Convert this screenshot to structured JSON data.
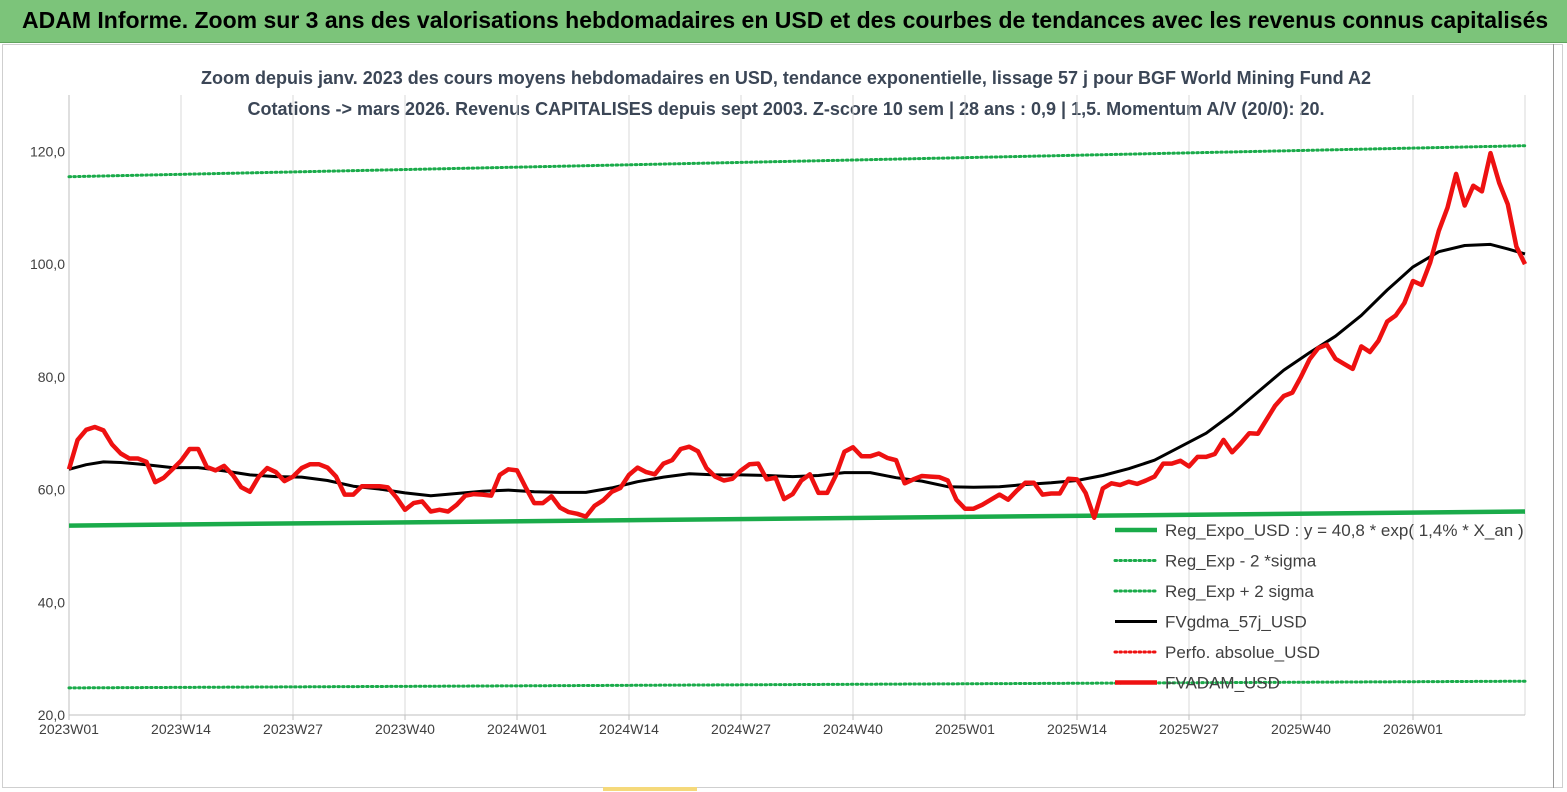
{
  "banner": {
    "title": "ADAM Informe. Zoom sur 3 ans des valorisations hebdomadaires en USD et des courbes de tendances avec les revenus connus capitalisés"
  },
  "colors": {
    "banner_bg": "#7cc47a",
    "green": "#1aab4a",
    "black": "#000000",
    "red": "#ee1111",
    "title_text": "#3b4656"
  },
  "chart_data": {
    "type": "line",
    "title": "Zoom depuis janv. 2023 des cours moyens hebdomadaires en USD, tendance exponentielle, lissage 57 j pour BGF World Mining Fund A2",
    "subtitle": "Cotations -> mars 2026. Revenus CAPITALISES depuis sept 2003. Z-score 10 sem | 28 ans : 0,9 | 1,5. Momentum A/V (20/0): 20.",
    "xlabel": "",
    "ylabel": "",
    "ylim": [
      20,
      130
    ],
    "y_ticks": [
      "20,0",
      "40,0",
      "60,0",
      "80,0",
      "100,0",
      "120,0"
    ],
    "y_tick_values": [
      20,
      40,
      60,
      80,
      100,
      120
    ],
    "x_ticks": [
      "2023W01",
      "2023W14",
      "2023W27",
      "2023W40",
      "2024W01",
      "2024W14",
      "2024W27",
      "2024W40",
      "2025W01",
      "2025W14",
      "2025W27",
      "2025W40",
      "2026W01"
    ],
    "x_tick_index": [
      0,
      13,
      26,
      39,
      52,
      65,
      78,
      91,
      104,
      117,
      130,
      143,
      156
    ],
    "x_max_index": 169,
    "grid": "vertical",
    "legend_placement": "bottom-right",
    "series": [
      {
        "name": "Reg_Expo_USD : y = 40,8 * exp( 1,4% *  X_an )",
        "style": "solid-thick",
        "color": "#1aab4a",
        "x": [
          0,
          169
        ],
        "values": [
          53.6,
          56.1
        ]
      },
      {
        "name": "Reg_Exp - 2 *sigma",
        "style": "dotted",
        "color": "#1aab4a",
        "x": [
          0,
          169
        ],
        "values": [
          24.8,
          26.0
        ]
      },
      {
        "name": "Reg_Exp + 2 sigma",
        "style": "dotted",
        "color": "#1aab4a",
        "x": [
          0,
          169
        ],
        "values": [
          115.5,
          121.0
        ]
      },
      {
        "name": "FVgdma_57j_USD",
        "style": "solid",
        "color": "#000000",
        "x": [
          0,
          2,
          4,
          6,
          9,
          12,
          15,
          18,
          21,
          24,
          27,
          30,
          33,
          36,
          39,
          42,
          45,
          48,
          51,
          54,
          57,
          60,
          63,
          66,
          69,
          72,
          75,
          78,
          81,
          84,
          87,
          90,
          93,
          96,
          99,
          102,
          105,
          108,
          111,
          114,
          117,
          120,
          123,
          126,
          129,
          132,
          135,
          138,
          141,
          144,
          147,
          150,
          153,
          156,
          159,
          162,
          165,
          167,
          169
        ],
        "values": [
          63.6,
          64.4,
          64.9,
          64.8,
          64.4,
          63.9,
          63.9,
          63.3,
          62.6,
          62.3,
          62.2,
          61.6,
          60.6,
          60.1,
          59.4,
          58.9,
          59.3,
          59.7,
          59.9,
          59.6,
          59.5,
          59.5,
          60.3,
          61.4,
          62.2,
          62.8,
          62.6,
          62.6,
          62.5,
          62.3,
          62.5,
          63.0,
          63.0,
          62.1,
          61.5,
          60.5,
          60.4,
          60.5,
          60.9,
          61.2,
          61.6,
          62.5,
          63.7,
          65.2,
          67.6,
          70.0,
          73.4,
          77.3,
          81.2,
          84.3,
          87.2,
          90.9,
          95.4,
          99.5,
          102.2,
          103.3,
          103.5,
          102.7,
          101.8
        ]
      },
      {
        "name": "Perfo. absolue_USD",
        "style": "dotted",
        "color": "#ee1111",
        "x": [],
        "values": []
      },
      {
        "name": "FVADAM_USD",
        "style": "solid-thick",
        "color": "#ee1111",
        "x": [
          0,
          1,
          2,
          3,
          4,
          5,
          6,
          7,
          8,
          9,
          10,
          11,
          12,
          13,
          14,
          15,
          16,
          17,
          18,
          19,
          20,
          21,
          22,
          23,
          24,
          25,
          26,
          27,
          28,
          29,
          30,
          31,
          32,
          33,
          34,
          35,
          36,
          37,
          38,
          39,
          40,
          41,
          42,
          43,
          44,
          45,
          46,
          47,
          48,
          49,
          50,
          51,
          52,
          53,
          54,
          55,
          56,
          57,
          58,
          59,
          60,
          61,
          62,
          63,
          64,
          65,
          66,
          67,
          68,
          69,
          70,
          71,
          72,
          73,
          74,
          75,
          76,
          77,
          78,
          79,
          80,
          81,
          82,
          83,
          84,
          85,
          86,
          87,
          88,
          89,
          90,
          91,
          92,
          93,
          94,
          95,
          96,
          97,
          98,
          99,
          100,
          101,
          102,
          103,
          104,
          105,
          106,
          107,
          108,
          109,
          110,
          111,
          112,
          113,
          114,
          115,
          116,
          117,
          118,
          119,
          120,
          121,
          122,
          123,
          124,
          125,
          126,
          127,
          128,
          129,
          130,
          131,
          132,
          133,
          134,
          135,
          136,
          137,
          138,
          139,
          140,
          141,
          142,
          143,
          144,
          145,
          146,
          147,
          148,
          149,
          150,
          151,
          152,
          153,
          154,
          155,
          156,
          157,
          158,
          159,
          160,
          161,
          162,
          163,
          164,
          165,
          166,
          167,
          168,
          169
        ],
        "values": [
          63.6,
          68.8,
          70.6,
          71.1,
          70.5,
          68.0,
          66.4,
          65.5,
          65.5,
          64.9,
          61.3,
          62.1,
          63.6,
          65.1,
          67.2,
          67.2,
          64.0,
          63.4,
          64.2,
          62.6,
          60.4,
          59.6,
          62.2,
          63.8,
          63.1,
          61.5,
          62.3,
          63.8,
          64.5,
          64.5,
          63.9,
          62.3,
          59.1,
          59.1,
          60.6,
          60.6,
          60.6,
          60.4,
          58.6,
          56.4,
          57.6,
          57.9,
          56.1,
          56.4,
          56.1,
          57.3,
          58.9,
          59.2,
          59.1,
          58.9,
          62.6,
          63.6,
          63.4,
          60.4,
          57.6,
          57.6,
          58.8,
          56.8,
          56.0,
          55.7,
          55.2,
          57.1,
          58.1,
          59.6,
          60.3,
          62.6,
          63.9,
          63.1,
          62.7,
          64.6,
          65.2,
          67.2,
          67.6,
          66.8,
          63.8,
          62.3,
          61.6,
          61.9,
          63.4,
          64.5,
          64.6,
          61.8,
          62.1,
          58.3,
          59.2,
          61.6,
          62.7,
          59.4,
          59.4,
          62.5,
          66.7,
          67.5,
          65.9,
          65.9,
          66.4,
          65.6,
          65.2,
          61.1,
          61.8,
          62.4,
          62.3,
          62.2,
          61.6,
          58.2,
          56.6,
          56.6,
          57.3,
          58.2,
          59.1,
          58.2,
          59.8,
          61.2,
          61.2,
          59.1,
          59.3,
          59.3,
          61.9,
          61.8,
          59.4,
          55.0,
          60.2,
          61.1,
          60.8,
          61.4,
          61.0,
          61.6,
          62.3,
          64.6,
          64.6,
          65.1,
          64.1,
          65.8,
          65.8,
          66.3,
          68.8,
          66.6,
          68.2,
          70.0,
          69.9,
          72.4,
          74.9,
          76.6,
          77.2,
          80.0,
          83.1,
          85.1,
          85.7,
          83.2,
          82.3,
          81.4,
          85.4,
          84.4,
          86.4,
          89.8,
          90.9,
          93.1,
          97.0,
          96.3,
          100.3,
          105.9,
          110.0,
          116.0,
          110.4,
          113.9,
          112.9,
          119.7,
          114.4,
          110.6,
          103.1,
          100.0
        ]
      }
    ]
  }
}
